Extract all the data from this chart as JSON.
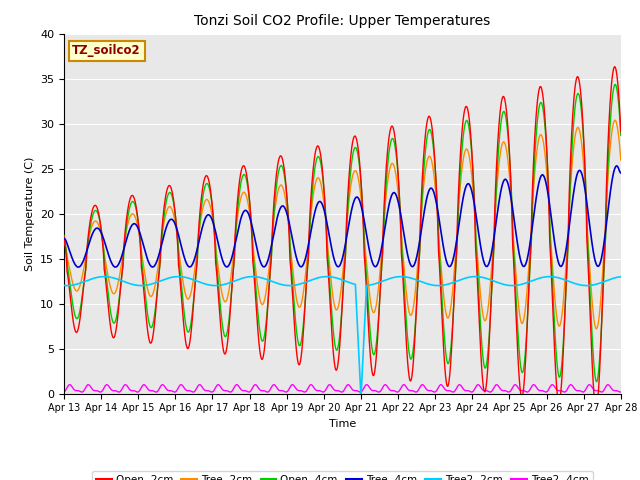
{
  "title": "Tonzi Soil CO2 Profile: Upper Temperatures",
  "xlabel": "Time",
  "ylabel": "Soil Temperature (C)",
  "ylim": [
    0,
    40
  ],
  "annotation": "TZ_soilco2",
  "background_color": "#e8e8e8",
  "series": {
    "open_2cm": {
      "label": "Open -2cm",
      "color": "#ff0000"
    },
    "tree_2cm": {
      "label": "Tree -2cm",
      "color": "#ff8c00"
    },
    "open_4cm": {
      "label": "Open -4cm",
      "color": "#00cc00"
    },
    "tree_4cm": {
      "label": "Tree -4cm",
      "color": "#0000cc"
    },
    "tree2_2cm": {
      "label": "Tree2 -2cm",
      "color": "#00ccff"
    },
    "tree2_4cm": {
      "label": "Tree2 -4cm",
      "color": "#ff00ff"
    }
  },
  "xtick_labels": [
    "Apr 13",
    "Apr 14",
    "Apr 15",
    "Apr 16",
    "Apr 17",
    "Apr 18",
    "Apr 19",
    "Apr 20",
    "Apr 21",
    "Apr 22",
    "Apr 23",
    "Apr 24",
    "Apr 25",
    "Apr 26",
    "Apr 27",
    "Apr 28"
  ],
  "figsize": [
    6.4,
    4.8
  ],
  "dpi": 100
}
